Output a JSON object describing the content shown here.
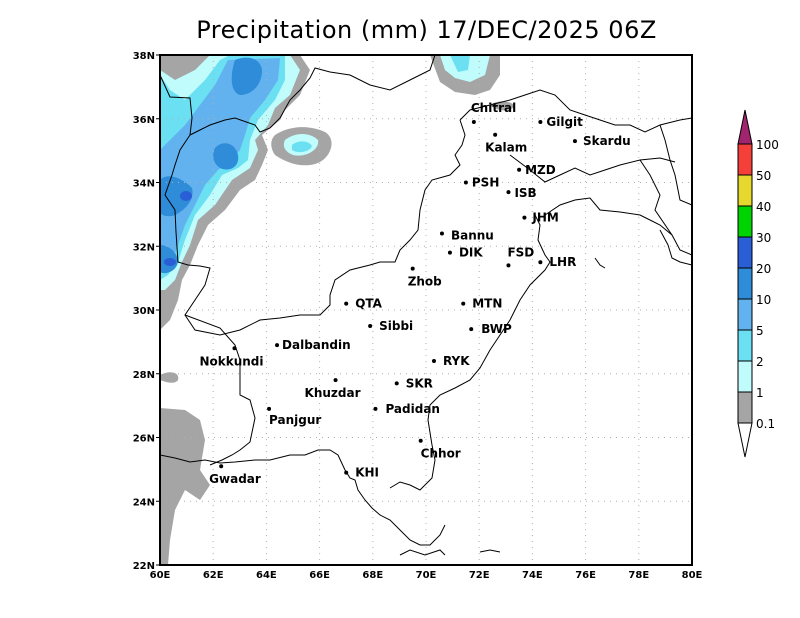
{
  "title": "Precipitation (mm) 17/DEC/2025 06Z",
  "map": {
    "lon_range": [
      60,
      80
    ],
    "lat_range": [
      22,
      38
    ],
    "x_ticks": [
      "60E",
      "62E",
      "64E",
      "66E",
      "68E",
      "70E",
      "72E",
      "74E",
      "76E",
      "78E",
      "80E"
    ],
    "y_ticks": [
      "22N",
      "24N",
      "26N",
      "28N",
      "30N",
      "32N",
      "34N",
      "36N",
      "38N"
    ],
    "gridlines": "dotted",
    "cities": [
      {
        "name": "Chitral",
        "lon": 71.8,
        "lat": 35.9
      },
      {
        "name": "Kalam",
        "lon": 72.6,
        "lat": 35.5
      },
      {
        "name": "Gilgit",
        "lon": 74.3,
        "lat": 35.9
      },
      {
        "name": "Skardu",
        "lon": 75.6,
        "lat": 35.3
      },
      {
        "name": "MZD",
        "lon": 73.5,
        "lat": 34.4
      },
      {
        "name": "PSH",
        "lon": 71.5,
        "lat": 34.0
      },
      {
        "name": "ISB",
        "lon": 73.1,
        "lat": 33.7
      },
      {
        "name": "JHM",
        "lon": 73.7,
        "lat": 32.9
      },
      {
        "name": "Bannu",
        "lon": 70.6,
        "lat": 32.4
      },
      {
        "name": "DIK",
        "lon": 70.9,
        "lat": 31.8
      },
      {
        "name": "FSD",
        "lon": 73.1,
        "lat": 31.4
      },
      {
        "name": "LHR",
        "lon": 74.3,
        "lat": 31.5
      },
      {
        "name": "Zhob",
        "lon": 69.5,
        "lat": 31.3
      },
      {
        "name": "QTA",
        "lon": 67.0,
        "lat": 30.2
      },
      {
        "name": "MTN",
        "lon": 71.4,
        "lat": 30.2
      },
      {
        "name": "Sibbi",
        "lon": 67.9,
        "lat": 29.5
      },
      {
        "name": "BWP",
        "lon": 71.7,
        "lat": 29.4
      },
      {
        "name": "Dalbandin",
        "lon": 64.4,
        "lat": 28.9
      },
      {
        "name": "Nokkundi",
        "lon": 62.8,
        "lat": 28.8
      },
      {
        "name": "RYK",
        "lon": 70.3,
        "lat": 28.4
      },
      {
        "name": "Khuzdar",
        "lon": 66.6,
        "lat": 27.8
      },
      {
        "name": "SKR",
        "lon": 68.9,
        "lat": 27.7
      },
      {
        "name": "Panjgur",
        "lon": 64.1,
        "lat": 26.9
      },
      {
        "name": "Padidan",
        "lon": 68.1,
        "lat": 26.9
      },
      {
        "name": "Chhor",
        "lon": 69.8,
        "lat": 25.9
      },
      {
        "name": "KHI",
        "lon": 67.0,
        "lat": 24.9
      },
      {
        "name": "Gwadar",
        "lon": 62.3,
        "lat": 25.1
      }
    ]
  },
  "legend": {
    "items": [
      {
        "label": "0.1",
        "color": "#ffffff"
      },
      {
        "label": "1",
        "color": "#a5a5a5"
      },
      {
        "label": "2",
        "color": "#c0fcfc"
      },
      {
        "label": "5",
        "color": "#6ae0f2"
      },
      {
        "label": "10",
        "color": "#62b2f0"
      },
      {
        "label": "20",
        "color": "#2e8cd8"
      },
      {
        "label": "30",
        "color": "#2a5ed6"
      },
      {
        "label": "40",
        "color": "#00d400"
      },
      {
        "label": "50",
        "color": "#e6d82c"
      },
      {
        "label": "100",
        "color": "#f5403a"
      },
      {
        "label": "",
        "color": "#a0246e"
      }
    ]
  }
}
